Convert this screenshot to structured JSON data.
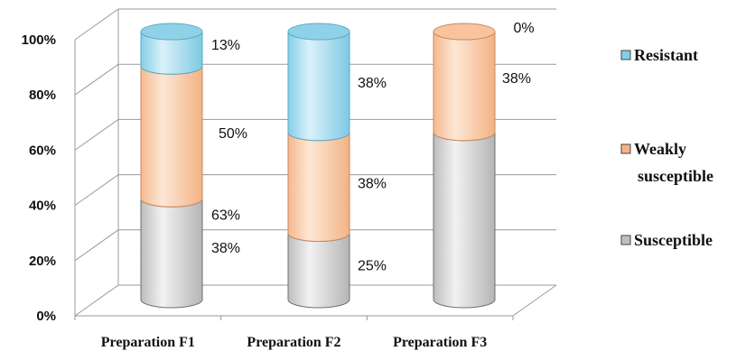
{
  "chart_data": {
    "type": "bar",
    "stacked": true,
    "three_d": true,
    "categories": [
      "Preparation F1",
      "Preparation F2",
      "Preparation F3"
    ],
    "series": [
      {
        "name": "Susceptible",
        "values": [
          38,
          25,
          63
        ],
        "labels": [
          "38%",
          "25%",
          "63%"
        ],
        "color": "#cfcfcf"
      },
      {
        "name": "Weakly susceptible",
        "values": [
          50,
          38,
          38
        ],
        "labels": [
          "50%",
          "38%",
          "38%"
        ],
        "color": "#f9c9a0"
      },
      {
        "name": "Resistant",
        "values": [
          13,
          38,
          0
        ],
        "labels": [
          "13%",
          "38%",
          "0%"
        ],
        "color": "#a8dcef"
      }
    ],
    "ylim": [
      0,
      100
    ],
    "yticks": [
      "0%",
      "20%",
      "40%",
      "60%",
      "80%",
      "100%"
    ],
    "grid": true,
    "legend_position": "right",
    "legend": [
      {
        "lines": [
          "Resistant"
        ],
        "color": "#7fd0ea"
      },
      {
        "lines": [
          "Weakly",
          "susceptible"
        ],
        "color": "#f6b282"
      },
      {
        "lines": [
          "Susceptible"
        ],
        "color": "#bfbfbf"
      }
    ]
  }
}
